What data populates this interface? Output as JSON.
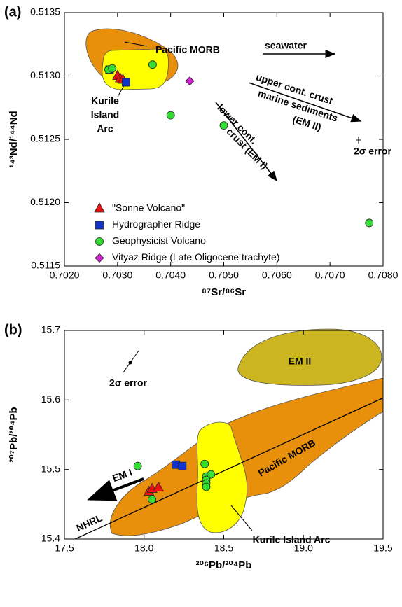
{
  "chart_data": [
    {
      "type": "scatter",
      "panel_label": "(a)",
      "xlabel": "⁸⁷Sr/⁸⁶Sr",
      "ylabel": "¹⁴³Nd/¹⁴⁴Nd",
      "xlim": [
        0.702,
        0.708
      ],
      "ylim": [
        0.5115,
        0.5135
      ],
      "xticks": [
        {
          "value": 0.702,
          "label": "0.7020"
        },
        {
          "value": 0.703,
          "label": "0.7030"
        },
        {
          "value": 0.704,
          "label": "0.7040"
        },
        {
          "value": 0.705,
          "label": "0.7050"
        },
        {
          "value": 0.706,
          "label": "0.7060"
        },
        {
          "value": 0.707,
          "label": "0.7070"
        },
        {
          "value": 0.708,
          "label": "0.7080"
        }
      ],
      "yticks": [
        0.5115,
        {
          "value": 0.512,
          "label": "0.5120"
        },
        0.5125,
        {
          "value": 0.513,
          "label": "0.5130"
        },
        0.5135
      ],
      "legend": "lower left",
      "series": [
        {
          "name": "\"Sonne Volcano\"",
          "color": "#ee1111",
          "marker": "triangle",
          "x": [
            0.703,
            0.70305,
            0.7031
          ],
          "values": [
            0.513,
            0.51298,
            0.51297
          ]
        },
        {
          "name": "Hydrographer Ridge",
          "color": "#1133cc",
          "marker": "square",
          "x": [
            0.70285,
            0.70316
          ],
          "values": [
            0.51305,
            0.51295
          ]
        },
        {
          "name": "Geophysicist Volcano",
          "color": "#33dd33",
          "marker": "circle",
          "x": [
            0.70283,
            0.7029,
            0.70366,
            0.704,
            0.705,
            0.70774
          ],
          "values": [
            0.51305,
            0.51306,
            0.51309,
            0.51269,
            0.51261,
            0.51184
          ]
        },
        {
          "name": "Vityaz Ridge (Late Oligocene trachyte)",
          "color": "#cc22cc",
          "marker": "diamond",
          "x": [
            0.70436
          ],
          "values": [
            0.51296
          ]
        }
      ],
      "annotations": [
        "Pacific MORB",
        "seawater",
        "upper cont. crust",
        "marine sediments",
        "(EM II)",
        "lower cont.",
        "crust (EM I)",
        "Kurile",
        "Island",
        "Arc",
        "2σ error"
      ]
    },
    {
      "type": "scatter",
      "panel_label": "(b)",
      "xlabel": "²⁰⁶Pb/²⁰⁴Pb",
      "ylabel": "²⁰⁷Pb/²⁰⁴Pb",
      "xlim": [
        17.5,
        19.5
      ],
      "ylim": [
        15.4,
        15.7
      ],
      "xticks": [
        17.5,
        {
          "value": 18,
          "label": "18.0"
        },
        18.5,
        {
          "value": 19,
          "label": "19.0"
        },
        19.5
      ],
      "yticks": [
        15.4,
        15.5,
        15.6,
        15.7
      ],
      "series": [
        {
          "color": "#ee1111",
          "marker": "triangle",
          "x": [
            18.03,
            18.05,
            18.09
          ],
          "values": [
            15.468,
            15.472,
            15.474
          ]
        },
        {
          "color": "#1133cc",
          "marker": "square",
          "x": [
            18.2,
            18.24
          ],
          "values": [
            15.507,
            15.505
          ]
        },
        {
          "color": "#33dd33",
          "marker": "circle",
          "x": [
            17.96,
            18.05,
            18.38,
            18.39,
            18.39,
            18.39,
            18.39,
            18.42
          ],
          "values": [
            15.505,
            15.457,
            15.508,
            15.49,
            15.485,
            15.48,
            15.475,
            15.493
          ]
        }
      ],
      "reference_line": {
        "label": "NHRL",
        "x": [
          17.5,
          19.5
        ],
        "values": [
          15.393,
          15.603
        ]
      },
      "annotations": [
        "EM II",
        "2σ error",
        "Pacific MORB",
        "EM I",
        "Kurile Island Arc"
      ]
    }
  ]
}
